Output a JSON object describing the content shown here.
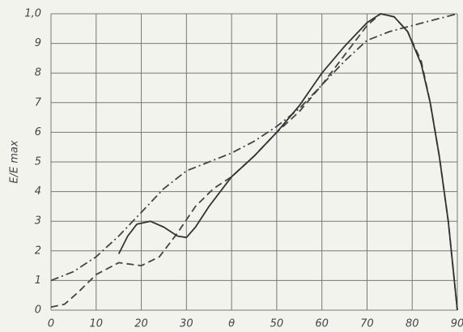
{
  "chart_data": {
    "type": "line",
    "y_label": "E/E max",
    "xlim": [
      0,
      90
    ],
    "ylim": [
      0,
      1
    ],
    "xticks": [
      0,
      10,
      20,
      30,
      {
        "value": 40,
        "label": "θ"
      },
      50,
      60,
      70,
      80,
      90
    ],
    "yticks": [
      0,
      {
        "value": 0.1,
        "label": "1"
      },
      {
        "value": 0.2,
        "label": "2"
      },
      {
        "value": 0.3,
        "label": "3"
      },
      {
        "value": 0.4,
        "label": "4"
      },
      {
        "value": 0.5,
        "label": "5"
      },
      {
        "value": 0.6,
        "label": "6"
      },
      {
        "value": 0.7,
        "label": "7"
      },
      {
        "value": 0.8,
        "label": "8"
      },
      {
        "value": 0.9,
        "label": "9"
      },
      {
        "value": 1,
        "label": "1,0"
      }
    ],
    "grid": true,
    "series": [
      {
        "color": "#444",
        "dash": "dashdot",
        "x": [
          0,
          5,
          10,
          15,
          20,
          25,
          30,
          35,
          40,
          45,
          50,
          55,
          60,
          65,
          70,
          75,
          80,
          85,
          90
        ],
        "values": [
          0.1,
          0.13,
          0.18,
          0.25,
          0.33,
          0.41,
          0.47,
          0.5,
          0.53,
          0.57,
          0.62,
          0.68,
          0.76,
          0.84,
          0.91,
          0.94,
          0.96,
          0.98,
          1.0
        ]
      },
      {
        "color": "#444",
        "dash": "dashed",
        "x": [
          0,
          3,
          6,
          10,
          15,
          20,
          24,
          28,
          32,
          36,
          40,
          45,
          50,
          55,
          60,
          65,
          70,
          73,
          76,
          79,
          82,
          84,
          86,
          88,
          90
        ],
        "values": [
          0.01,
          0.02,
          0.06,
          0.12,
          0.16,
          0.15,
          0.18,
          0.26,
          0.35,
          0.41,
          0.45,
          0.52,
          0.6,
          0.67,
          0.76,
          0.86,
          0.96,
          1.0,
          0.99,
          0.94,
          0.84,
          0.7,
          0.52,
          0.3,
          0.0
        ]
      },
      {
        "color": "#333",
        "dash": "solid",
        "x": [
          15,
          17,
          19,
          22,
          25,
          28,
          30,
          32,
          35,
          40,
          45,
          50,
          55,
          60,
          65,
          70,
          73,
          76,
          79,
          82,
          84,
          86,
          88,
          90
        ],
        "values": [
          0.19,
          0.25,
          0.29,
          0.3,
          0.28,
          0.25,
          0.245,
          0.28,
          0.35,
          0.45,
          0.52,
          0.6,
          0.69,
          0.8,
          0.89,
          0.97,
          1.0,
          0.99,
          0.94,
          0.83,
          0.7,
          0.52,
          0.3,
          0.0
        ]
      }
    ]
  }
}
